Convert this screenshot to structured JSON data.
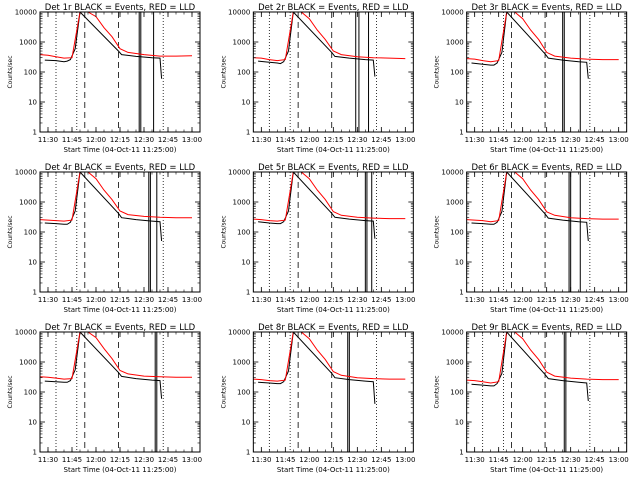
{
  "figure": {
    "xlabel": "Start Time (04-Oct-11 11:25:00)",
    "ylabel": "Counts/sec",
    "colors": {
      "events": "#000000",
      "lld": "#ff0000",
      "background": "#ffffff"
    }
  },
  "chart_data": [
    {
      "type": "line",
      "title": "Det 1r BLACK = Events, RED = LLD",
      "xlabel": "Start Time (04-Oct-11 11:25:00)",
      "ylabel": "Counts/sec",
      "xlim": [
        "11:25",
        "13:05"
      ],
      "ylim": [
        1,
        10000
      ],
      "yscale": "log",
      "x_ticks": [
        "11:30",
        "11:45",
        "12:00",
        "12:15",
        "12:30",
        "12:45",
        "13:00"
      ],
      "y_ticks": [
        "1",
        "10",
        "100",
        "1000",
        "10000"
      ],
      "series": [
        {
          "name": "Events",
          "color": "#000000",
          "x": [
            "11:28",
            "11:35",
            "11:40",
            "11:42",
            "11:44",
            "11:47",
            "11:50",
            "12:14",
            "12:16",
            "12:25",
            "12:35",
            "12:40",
            "12:41"
          ],
          "y": [
            250,
            240,
            220,
            230,
            260,
            600,
            10000,
            500,
            380,
            330,
            300,
            290,
            60
          ]
        },
        {
          "name": "LLD",
          "color": "#ff0000",
          "x": [
            "11:25",
            "11:30",
            "11:35",
            "11:40",
            "11:45",
            "11:50",
            "11:55",
            "12:00",
            "12:05",
            "12:10",
            "12:15",
            "12:20",
            "12:30",
            "12:40",
            "12:50",
            "13:00"
          ],
          "y": [
            380,
            360,
            320,
            290,
            300,
            10000,
            10000,
            7000,
            3000,
            1500,
            600,
            450,
            380,
            340,
            340,
            350
          ]
        }
      ],
      "vlines_dotted": [
        "11:35",
        "11:48",
        "12:42"
      ],
      "vlines_dashed": [
        "11:53",
        "12:14"
      ],
      "vlines_solid": [
        "12:27",
        "12:28",
        "12:36"
      ]
    },
    {
      "type": "line",
      "title": "Det 2r BLACK = Events, RED = LLD",
      "xlabel": "Start Time (04-Oct-11 11:25:00)",
      "ylabel": "Counts/sec",
      "xlim": [
        "11:25",
        "13:05"
      ],
      "ylim": [
        1,
        10000
      ],
      "yscale": "log",
      "x_ticks": [
        "11:30",
        "11:45",
        "12:00",
        "12:15",
        "12:30",
        "12:45",
        "13:00"
      ],
      "y_ticks": [
        "1",
        "10",
        "100",
        "1000",
        "10000"
      ],
      "series": [
        {
          "name": "Events",
          "color": "#000000",
          "x": [
            "11:28",
            "11:35",
            "11:40",
            "11:42",
            "11:44",
            "11:47",
            "11:50",
            "12:14",
            "12:16",
            "12:25",
            "12:35",
            "12:40",
            "12:41"
          ],
          "y": [
            230,
            210,
            200,
            190,
            220,
            500,
            10000,
            450,
            330,
            290,
            260,
            250,
            70
          ]
        },
        {
          "name": "LLD",
          "color": "#ff0000",
          "x": [
            "11:25",
            "11:30",
            "11:35",
            "11:40",
            "11:45",
            "11:50",
            "11:55",
            "12:00",
            "12:05",
            "12:10",
            "12:15",
            "12:20",
            "12:30",
            "12:40",
            "12:50",
            "13:00"
          ],
          "y": [
            300,
            290,
            260,
            240,
            260,
            10000,
            10000,
            6000,
            2500,
            1200,
            500,
            380,
            320,
            300,
            290,
            280
          ]
        }
      ],
      "vlines_dotted": [
        "11:35",
        "11:48",
        "12:42"
      ],
      "vlines_dashed": [
        "11:53",
        "12:14"
      ],
      "vlines_solid": [
        "12:29",
        "12:31",
        "12:37"
      ]
    },
    {
      "type": "line",
      "title": "Det 3r BLACK = Events, RED = LLD",
      "xlabel": "Start Time (04-Oct-11 11:25:00)",
      "ylabel": "Counts/sec",
      "xlim": [
        "11:25",
        "13:05"
      ],
      "ylim": [
        1,
        10000
      ],
      "yscale": "log",
      "x_ticks": [
        "11:30",
        "11:45",
        "12:00",
        "12:15",
        "12:30",
        "12:45",
        "13:00"
      ],
      "y_ticks": [
        "1",
        "10",
        "100",
        "1000",
        "10000"
      ],
      "series": [
        {
          "name": "Events",
          "color": "#000000",
          "x": [
            "11:28",
            "11:35",
            "11:40",
            "11:42",
            "11:44",
            "11:47",
            "11:50",
            "12:14",
            "12:16",
            "12:25",
            "12:35",
            "12:40",
            "12:41"
          ],
          "y": [
            200,
            180,
            170,
            170,
            200,
            450,
            10000,
            400,
            290,
            250,
            220,
            210,
            60
          ]
        },
        {
          "name": "LLD",
          "color": "#ff0000",
          "x": [
            "11:25",
            "11:30",
            "11:35",
            "11:40",
            "11:45",
            "11:50",
            "11:55",
            "12:00",
            "12:05",
            "12:10",
            "12:15",
            "12:20",
            "12:30",
            "12:40",
            "12:50",
            "13:00"
          ],
          "y": [
            280,
            270,
            240,
            220,
            240,
            10000,
            10000,
            6000,
            2500,
            1200,
            450,
            340,
            290,
            270,
            260,
            260
          ]
        }
      ],
      "vlines_dotted": [
        "11:35",
        "11:48",
        "12:42"
      ],
      "vlines_dashed": [
        "11:53",
        "12:14"
      ],
      "vlines_solid": [
        "12:25",
        "12:26",
        "12:36"
      ]
    },
    {
      "type": "line",
      "title": "Det 4r BLACK = Events, RED = LLD",
      "xlabel": "Start Time (04-Oct-11 11:25:00)",
      "ylabel": "Counts/sec",
      "xlim": [
        "11:25",
        "13:05"
      ],
      "ylim": [
        1,
        10000
      ],
      "yscale": "log",
      "x_ticks": [
        "11:30",
        "11:45",
        "12:00",
        "12:15",
        "12:30",
        "12:45",
        "13:00"
      ],
      "y_ticks": [
        "1",
        "10",
        "100",
        "1000",
        "10000"
      ],
      "series": [
        {
          "name": "Events",
          "color": "#000000",
          "x": [
            "11:28",
            "11:35",
            "11:40",
            "11:42",
            "11:44",
            "11:47",
            "11:50",
            "12:14",
            "12:16",
            "12:25",
            "12:35",
            "12:40",
            "12:41"
          ],
          "y": [
            200,
            190,
            180,
            180,
            210,
            500,
            10000,
            420,
            300,
            260,
            230,
            220,
            50
          ]
        },
        {
          "name": "LLD",
          "color": "#ff0000",
          "x": [
            "11:25",
            "11:30",
            "11:35",
            "11:40",
            "11:45",
            "11:50",
            "11:55",
            "12:00",
            "12:05",
            "12:10",
            "12:15",
            "12:20",
            "12:30",
            "12:40",
            "12:50",
            "13:00"
          ],
          "y": [
            260,
            250,
            240,
            230,
            250,
            10000,
            10000,
            6000,
            2500,
            1200,
            500,
            380,
            330,
            310,
            300,
            300
          ]
        }
      ],
      "vlines_dotted": [
        "11:35",
        "11:48",
        "12:42"
      ],
      "vlines_dashed": [
        "11:53",
        "12:14"
      ],
      "vlines_solid": [
        "12:33",
        "12:34",
        "12:38"
      ]
    },
    {
      "type": "line",
      "title": "Det 5r BLACK = Events, RED = LLD",
      "xlabel": "Start Time (04-Oct-11 11:25:00)",
      "ylabel": "Counts/sec",
      "xlim": [
        "11:25",
        "13:05"
      ],
      "ylim": [
        1,
        10000
      ],
      "yscale": "log",
      "x_ticks": [
        "11:30",
        "11:45",
        "12:00",
        "12:15",
        "12:30",
        "12:45",
        "13:00"
      ],
      "y_ticks": [
        "1",
        "10",
        "100",
        "1000",
        "10000"
      ],
      "series": [
        {
          "name": "Events",
          "color": "#000000",
          "x": [
            "11:28",
            "11:35",
            "11:40",
            "11:42",
            "11:44",
            "11:47",
            "11:50",
            "12:14",
            "12:16",
            "12:25",
            "12:35",
            "12:40",
            "12:41"
          ],
          "y": [
            220,
            200,
            190,
            190,
            220,
            500,
            10000,
            420,
            310,
            270,
            240,
            230,
            60
          ]
        },
        {
          "name": "LLD",
          "color": "#ff0000",
          "x": [
            "11:25",
            "11:30",
            "11:35",
            "11:40",
            "11:45",
            "11:50",
            "11:55",
            "12:00",
            "12:05",
            "12:10",
            "12:15",
            "12:20",
            "12:30",
            "12:40",
            "12:50",
            "13:00"
          ],
          "y": [
            270,
            260,
            240,
            230,
            250,
            10000,
            10000,
            6000,
            2500,
            1200,
            480,
            360,
            310,
            290,
            280,
            280
          ]
        }
      ],
      "vlines_dotted": [
        "11:35",
        "11:48",
        "12:42"
      ],
      "vlines_dashed": [
        "11:53",
        "12:14"
      ],
      "vlines_solid": [
        "12:35",
        "12:36",
        "12:39"
      ]
    },
    {
      "type": "line",
      "title": "Det 6r BLACK = Events, RED = LLD",
      "xlabel": "Start Time (04-Oct-11 11:25:00)",
      "ylabel": "Counts/sec",
      "xlim": [
        "11:25",
        "13:05"
      ],
      "ylim": [
        1,
        10000
      ],
      "yscale": "log",
      "x_ticks": [
        "11:30",
        "11:45",
        "12:00",
        "12:15",
        "12:30",
        "12:45",
        "13:00"
      ],
      "y_ticks": [
        "1",
        "10",
        "100",
        "1000",
        "10000"
      ],
      "series": [
        {
          "name": "Events",
          "color": "#000000",
          "x": [
            "11:28",
            "11:35",
            "11:40",
            "11:42",
            "11:44",
            "11:47",
            "11:50",
            "12:14",
            "12:16",
            "12:25",
            "12:35",
            "12:40",
            "12:41"
          ],
          "y": [
            200,
            190,
            180,
            180,
            210,
            480,
            10000,
            400,
            290,
            250,
            220,
            210,
            50
          ]
        },
        {
          "name": "LLD",
          "color": "#ff0000",
          "x": [
            "11:25",
            "11:30",
            "11:35",
            "11:40",
            "11:45",
            "11:50",
            "11:55",
            "12:00",
            "12:05",
            "12:10",
            "12:15",
            "12:20",
            "12:30",
            "12:40",
            "12:50",
            "13:00"
          ],
          "y": [
            260,
            250,
            240,
            220,
            240,
            10000,
            10000,
            6000,
            2500,
            1200,
            470,
            360,
            300,
            280,
            270,
            270
          ]
        }
      ],
      "vlines_dotted": [
        "11:35",
        "11:48",
        "12:42"
      ],
      "vlines_dashed": [
        "11:53",
        "12:14"
      ],
      "vlines_solid": [
        "12:29",
        "12:30",
        "12:36"
      ]
    },
    {
      "type": "line",
      "title": "Det 7r BLACK = Events, RED = LLD",
      "xlabel": "Start Time (04-Oct-11 11:25:00)",
      "ylabel": "Counts/sec",
      "xlim": [
        "11:25",
        "13:05"
      ],
      "ylim": [
        1,
        10000
      ],
      "yscale": "log",
      "x_ticks": [
        "11:30",
        "11:45",
        "12:00",
        "12:15",
        "12:30",
        "12:45",
        "13:00"
      ],
      "y_ticks": [
        "1",
        "10",
        "100",
        "1000",
        "10000"
      ],
      "series": [
        {
          "name": "Events",
          "color": "#000000",
          "x": [
            "11:28",
            "11:35",
            "11:40",
            "11:42",
            "11:44",
            "11:47",
            "11:50",
            "12:14",
            "12:16",
            "12:25",
            "12:35",
            "12:40",
            "12:41"
          ],
          "y": [
            230,
            220,
            210,
            210,
            240,
            550,
            10000,
            450,
            330,
            280,
            250,
            240,
            60
          ]
        },
        {
          "name": "LLD",
          "color": "#ff0000",
          "x": [
            "11:25",
            "11:30",
            "11:35",
            "11:40",
            "11:45",
            "11:50",
            "11:55",
            "12:00",
            "12:05",
            "12:10",
            "12:15",
            "12:20",
            "12:30",
            "12:40",
            "12:50",
            "13:00"
          ],
          "y": [
            320,
            310,
            290,
            270,
            280,
            10000,
            10000,
            6500,
            2800,
            1300,
            520,
            400,
            340,
            320,
            310,
            310
          ]
        }
      ],
      "vlines_dotted": [
        "11:35",
        "11:48",
        "12:42"
      ],
      "vlines_dashed": [
        "11:53",
        "12:14"
      ],
      "vlines_solid": [
        "12:37",
        "12:38"
      ]
    },
    {
      "type": "line",
      "title": "Det 8r BLACK = Events, RED = LLD",
      "xlabel": "Start Time (04-Oct-11 11:25:00)",
      "ylabel": "Counts/sec",
      "xlim": [
        "11:25",
        "13:05"
      ],
      "ylim": [
        1,
        10000
      ],
      "yscale": "log",
      "x_ticks": [
        "11:30",
        "11:45",
        "12:00",
        "12:15",
        "12:30",
        "12:45",
        "13:00"
      ],
      "y_ticks": [
        "1",
        "10",
        "100",
        "1000",
        "10000"
      ],
      "series": [
        {
          "name": "Events",
          "color": "#000000",
          "x": [
            "11:28",
            "11:35",
            "11:40",
            "11:42",
            "11:44",
            "11:47",
            "11:50",
            "12:14",
            "12:16",
            "12:25",
            "12:35",
            "12:40",
            "12:41"
          ],
          "y": [
            210,
            200,
            190,
            190,
            220,
            500,
            10000,
            420,
            300,
            260,
            230,
            220,
            40
          ]
        },
        {
          "name": "LLD",
          "color": "#ff0000",
          "x": [
            "11:25",
            "11:30",
            "11:35",
            "11:40",
            "11:45",
            "11:50",
            "11:55",
            "12:00",
            "12:05",
            "12:10",
            "12:15",
            "12:20",
            "12:30",
            "12:40",
            "12:50",
            "13:00"
          ],
          "y": [
            270,
            260,
            240,
            230,
            250,
            10000,
            10000,
            6000,
            2500,
            1200,
            480,
            360,
            300,
            280,
            270,
            270
          ]
        }
      ],
      "vlines_dotted": [
        "11:35",
        "11:48",
        "12:42"
      ],
      "vlines_dashed": [
        "11:53",
        "12:14"
      ],
      "vlines_solid": [
        "12:24",
        "12:25"
      ]
    },
    {
      "type": "line",
      "title": "Det 9r BLACK = Events, RED = LLD",
      "xlabel": "Start Time (04-Oct-11 11:25:00)",
      "ylabel": "Counts/sec",
      "xlim": [
        "11:25",
        "13:05"
      ],
      "ylim": [
        1,
        10000
      ],
      "yscale": "log",
      "x_ticks": [
        "11:30",
        "11:45",
        "12:00",
        "12:15",
        "12:30",
        "12:45",
        "13:00"
      ],
      "y_ticks": [
        "1",
        "10",
        "100",
        "1000",
        "10000"
      ],
      "series": [
        {
          "name": "Events",
          "color": "#000000",
          "x": [
            "11:28",
            "11:35",
            "11:40",
            "11:42",
            "11:44",
            "11:47",
            "11:50",
            "12:14",
            "12:16",
            "12:25",
            "12:35",
            "12:40",
            "12:41"
          ],
          "y": [
            180,
            170,
            160,
            160,
            190,
            420,
            10000,
            380,
            280,
            240,
            210,
            200,
            50
          ]
        },
        {
          "name": "LLD",
          "color": "#ff0000",
          "x": [
            "11:25",
            "11:30",
            "11:35",
            "11:40",
            "11:45",
            "11:50",
            "11:55",
            "12:00",
            "12:05",
            "12:10",
            "12:15",
            "12:20",
            "12:30",
            "12:40",
            "12:50",
            "13:00"
          ],
          "y": [
            250,
            240,
            220,
            200,
            220,
            10000,
            10000,
            6000,
            2500,
            1200,
            460,
            340,
            290,
            270,
            260,
            260
          ]
        }
      ],
      "vlines_dotted": [
        "11:35",
        "11:48",
        "12:42"
      ],
      "vlines_dashed": [
        "11:53",
        "12:14"
      ],
      "vlines_solid": [
        "12:26",
        "12:27"
      ]
    }
  ]
}
